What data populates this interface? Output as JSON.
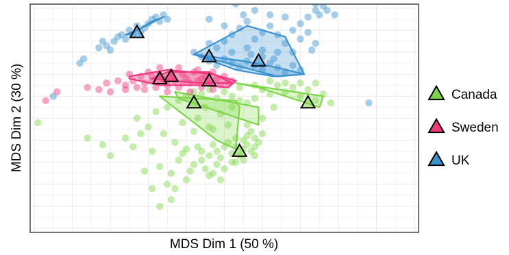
{
  "chart_data": {
    "type": "scatter",
    "title": "",
    "xlabel": "MDS Dim 1 (50 %)",
    "ylabel": "MDS Dim 2 (30 %)",
    "xlim": [
      0,
      100
    ],
    "ylim": [
      0,
      100
    ],
    "grid": true,
    "tick_labels_shown": false,
    "legend_position": "right",
    "series": [
      {
        "name": "Canada",
        "color": "#7CD644",
        "centroids": [
          [
            42,
            57
          ],
          [
            54,
            35
          ],
          [
            72,
            57
          ]
        ],
        "hulls": [
          [
            [
              33,
              60
            ],
            [
              53,
              58
            ],
            [
              54,
              55
            ],
            [
              53,
              36
            ],
            [
              48,
              40
            ],
            [
              33,
              60
            ]
          ],
          [
            [
              37,
              62
            ],
            [
              59,
              55
            ],
            [
              59,
              47
            ],
            [
              38,
              59
            ]
          ],
          [
            [
              53,
              66
            ],
            [
              76,
              60
            ],
            [
              75,
              55
            ],
            [
              59,
              64
            ]
          ]
        ],
        "points": [
          [
            1,
            48
          ],
          [
            14,
            41
          ],
          [
            18,
            38
          ],
          [
            20,
            33
          ],
          [
            24,
            41
          ],
          [
            26,
            37
          ],
          [
            28,
            43
          ],
          [
            31,
            35
          ],
          [
            33,
            28
          ],
          [
            36,
            25
          ],
          [
            38,
            31
          ],
          [
            35,
            20
          ],
          [
            37,
            18
          ],
          [
            39,
            34
          ],
          [
            40,
            22
          ],
          [
            41,
            26
          ],
          [
            42,
            29
          ],
          [
            43,
            37
          ],
          [
            44,
            31
          ],
          [
            45,
            27
          ],
          [
            46,
            33
          ],
          [
            46,
            24
          ],
          [
            47,
            38
          ],
          [
            48,
            35
          ],
          [
            48,
            29
          ],
          [
            49,
            32
          ],
          [
            50,
            27
          ],
          [
            50,
            37
          ],
          [
            51,
            39
          ],
          [
            52,
            34
          ],
          [
            52,
            30
          ],
          [
            53,
            41
          ],
          [
            53,
            37
          ],
          [
            54,
            33
          ],
          [
            55,
            36
          ],
          [
            55,
            40
          ],
          [
            56,
            38
          ],
          [
            56,
            42
          ],
          [
            57,
            35
          ],
          [
            57,
            44
          ],
          [
            58,
            37
          ],
          [
            58,
            41
          ],
          [
            59,
            39
          ],
          [
            60,
            43
          ],
          [
            58,
            33
          ],
          [
            55,
            31
          ],
          [
            53,
            30
          ],
          [
            49,
            22
          ],
          [
            47,
            25
          ],
          [
            44,
            35
          ],
          [
            40,
            36
          ],
          [
            37,
            39
          ],
          [
            34,
            43
          ],
          [
            30,
            46
          ],
          [
            27,
            50
          ],
          [
            32,
            53
          ],
          [
            35,
            55
          ],
          [
            38,
            58
          ],
          [
            40,
            60
          ],
          [
            42,
            62
          ],
          [
            44,
            61
          ],
          [
            46,
            63
          ],
          [
            48,
            59
          ],
          [
            50,
            62
          ],
          [
            52,
            60
          ],
          [
            54,
            58
          ],
          [
            56,
            57
          ],
          [
            58,
            59
          ],
          [
            60,
            63
          ],
          [
            62,
            61
          ],
          [
            64,
            65
          ],
          [
            66,
            62
          ],
          [
            68,
            64
          ],
          [
            70,
            60
          ],
          [
            72,
            63
          ],
          [
            74,
            58
          ],
          [
            76,
            61
          ],
          [
            78,
            57
          ],
          [
            74,
            66
          ],
          [
            70,
            66
          ],
          [
            66,
            66
          ],
          [
            62,
            67
          ],
          [
            58,
            65
          ],
          [
            54,
            64
          ],
          [
            45,
            55
          ],
          [
            49,
            52
          ],
          [
            52,
            55
          ],
          [
            43,
            50
          ],
          [
            39,
            48
          ],
          [
            46,
            46
          ],
          [
            36,
            13
          ],
          [
            31,
            18
          ],
          [
            29,
            26
          ],
          [
            33,
            10
          ],
          [
            47,
            45
          ],
          [
            51,
            47
          ],
          [
            42,
            44
          ],
          [
            56,
            47
          ],
          [
            60,
            50
          ],
          [
            63,
            55
          ]
        ]
      },
      {
        "name": "Sweden",
        "color": "#F0387E",
        "centroids": [
          [
            33,
            68
          ],
          [
            36,
            69
          ],
          [
            46,
            67
          ]
        ],
        "hulls": [
          [
            [
              25,
              69
            ],
            [
              35,
              72
            ],
            [
              47,
              70
            ],
            [
              53,
              67
            ],
            [
              51,
              64
            ],
            [
              44,
              65
            ],
            [
              33,
              65
            ],
            [
              25,
              68
            ]
          ],
          [
            [
              31,
              68
            ],
            [
              43,
              66
            ],
            [
              52,
              66
            ],
            [
              46,
              71
            ],
            [
              35,
              71
            ]
          ]
        ],
        "points": [
          [
            3,
            58
          ],
          [
            6,
            62
          ],
          [
            14,
            64
          ],
          [
            17,
            63
          ],
          [
            19,
            66
          ],
          [
            20,
            62
          ],
          [
            22,
            67
          ],
          [
            24,
            65
          ],
          [
            25,
            70
          ],
          [
            26,
            67
          ],
          [
            27,
            64
          ],
          [
            28,
            69
          ],
          [
            29,
            66
          ],
          [
            30,
            71
          ],
          [
            31,
            67
          ],
          [
            32,
            64
          ],
          [
            33,
            70
          ],
          [
            34,
            68
          ],
          [
            35,
            65
          ],
          [
            36,
            71
          ],
          [
            37,
            67
          ],
          [
            38,
            64
          ],
          [
            39,
            70
          ],
          [
            40,
            68
          ],
          [
            41,
            66
          ],
          [
            42,
            71
          ],
          [
            43,
            67
          ],
          [
            44,
            64
          ],
          [
            45,
            69
          ],
          [
            46,
            66
          ],
          [
            47,
            71
          ],
          [
            48,
            68
          ],
          [
            49,
            65
          ],
          [
            50,
            69
          ],
          [
            51,
            66
          ],
          [
            52,
            67
          ],
          [
            33,
            73
          ],
          [
            38,
            73
          ],
          [
            43,
            72
          ],
          [
            29,
            63
          ],
          [
            24,
            63
          ],
          [
            35,
            62
          ],
          [
            41,
            62
          ],
          [
            47,
            63
          ],
          [
            36,
            68
          ],
          [
            39,
            66
          ],
          [
            44,
            68
          ],
          [
            31,
            69
          ]
        ]
      },
      {
        "name": "UK",
        "color": "#3A92D0",
        "centroids": [
          [
            27,
            89
          ],
          [
            46,
            78
          ],
          [
            59,
            76
          ]
        ],
        "hulls": [
          [
            [
              42,
              79
            ],
            [
              56,
              92
            ],
            [
              66,
              87
            ],
            [
              71,
              70
            ],
            [
              64,
              69
            ],
            [
              42,
              79
            ]
          ],
          [
            [
              42,
              79
            ],
            [
              55,
              76
            ],
            [
              64,
              73
            ],
            [
              71,
              70
            ],
            [
              63,
              69
            ],
            [
              53,
              72
            ]
          ],
          [
            [
              24,
              88
            ],
            [
              27,
              90
            ],
            [
              34,
              96
            ],
            [
              31,
              94
            ],
            [
              25,
              88
            ]
          ]
        ],
        "points": [
          [
            5,
            60
          ],
          [
            12,
            75
          ],
          [
            13,
            77
          ],
          [
            17,
            82
          ],
          [
            19,
            83
          ],
          [
            21,
            85
          ],
          [
            22,
            87
          ],
          [
            23,
            88
          ],
          [
            24,
            86
          ],
          [
            25,
            90
          ],
          [
            26,
            88
          ],
          [
            27,
            92
          ],
          [
            28,
            89
          ],
          [
            29,
            91
          ],
          [
            30,
            93
          ],
          [
            31,
            95
          ],
          [
            32,
            96
          ],
          [
            33,
            94
          ],
          [
            34,
            97
          ],
          [
            35,
            95
          ],
          [
            20,
            81
          ],
          [
            18,
            85
          ],
          [
            42,
            80
          ],
          [
            44,
            78
          ],
          [
            46,
            76
          ],
          [
            48,
            74
          ],
          [
            50,
            77
          ],
          [
            52,
            75
          ],
          [
            54,
            73
          ],
          [
            56,
            76
          ],
          [
            58,
            74
          ],
          [
            60,
            72
          ],
          [
            62,
            75
          ],
          [
            64,
            73
          ],
          [
            66,
            71
          ],
          [
            68,
            74
          ],
          [
            70,
            72
          ],
          [
            50,
            85
          ],
          [
            52,
            88
          ],
          [
            54,
            91
          ],
          [
            56,
            94
          ],
          [
            58,
            86
          ],
          [
            60,
            89
          ],
          [
            62,
            92
          ],
          [
            64,
            88
          ],
          [
            66,
            84
          ],
          [
            68,
            90
          ],
          [
            70,
            93
          ],
          [
            72,
            96
          ],
          [
            74,
            99
          ],
          [
            74,
            102
          ],
          [
            75,
            97
          ],
          [
            76,
            101
          ],
          [
            77,
            99
          ],
          [
            79,
            97
          ],
          [
            70,
            86
          ],
          [
            72,
            89
          ],
          [
            74,
            84
          ],
          [
            73,
            81
          ],
          [
            68,
            80
          ],
          [
            64,
            80
          ],
          [
            60,
            81
          ],
          [
            56,
            82
          ],
          [
            52,
            80
          ],
          [
            48,
            82
          ],
          [
            46,
            84
          ],
          [
            50,
            92
          ],
          [
            55,
            97
          ],
          [
            58,
            99
          ],
          [
            62,
            97
          ],
          [
            66,
            96
          ],
          [
            53,
            102
          ],
          [
            46,
            95
          ],
          [
            88,
            57
          ],
          [
            60,
            78
          ],
          [
            57,
            79
          ],
          [
            63,
            77
          ]
        ]
      }
    ]
  }
}
